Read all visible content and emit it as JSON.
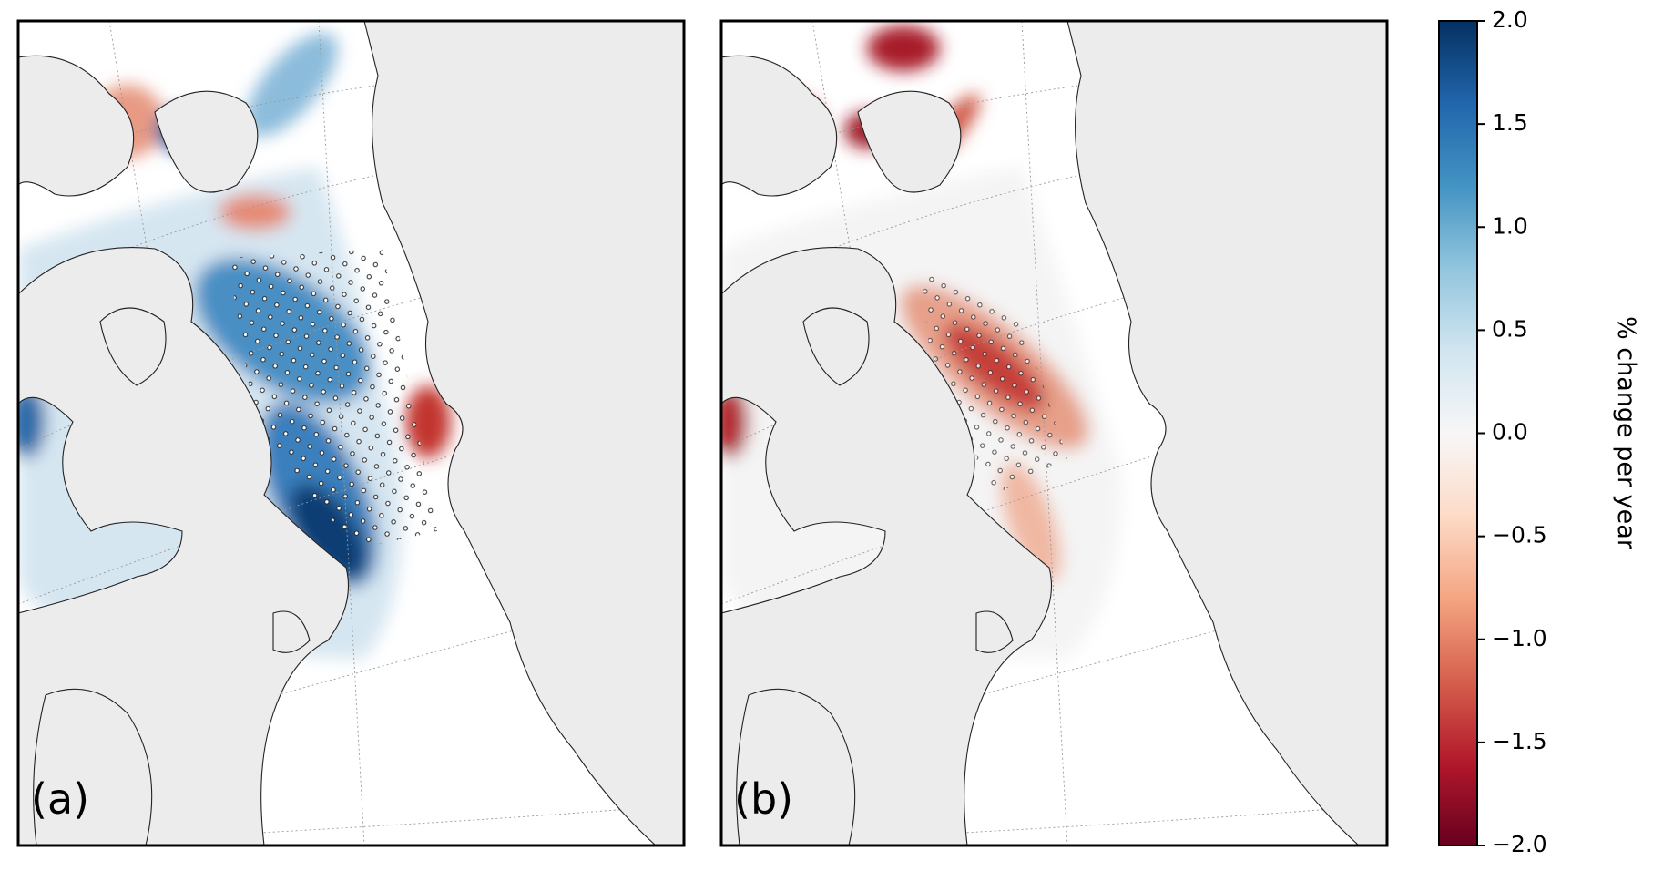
{
  "panels": [
    {
      "label": "(a)"
    },
    {
      "label": "(b)"
    }
  ],
  "colorbar": {
    "label": "% change per year",
    "lim": [
      -2,
      2
    ],
    "colors": [
      "#67001f",
      "#b2182b",
      "#d6604d",
      "#f4a582",
      "#fddbc7",
      "#f7f7f7",
      "#d1e5f0",
      "#92c5de",
      "#4393c3",
      "#2166ac",
      "#053061"
    ],
    "ticks": [
      {
        "value": 2,
        "label": "2.0"
      },
      {
        "value": 1.5,
        "label": "1.5"
      },
      {
        "value": 1,
        "label": "1.0"
      },
      {
        "value": 0.5,
        "label": "0.5"
      },
      {
        "value": 0,
        "label": "0.0"
      },
      {
        "value": -0.5,
        "label": "−0.5"
      },
      {
        "value": -1,
        "label": "−1.0"
      },
      {
        "value": -1.5,
        "label": "−1.5"
      },
      {
        "value": -2,
        "label": "−2.0"
      }
    ]
  }
}
